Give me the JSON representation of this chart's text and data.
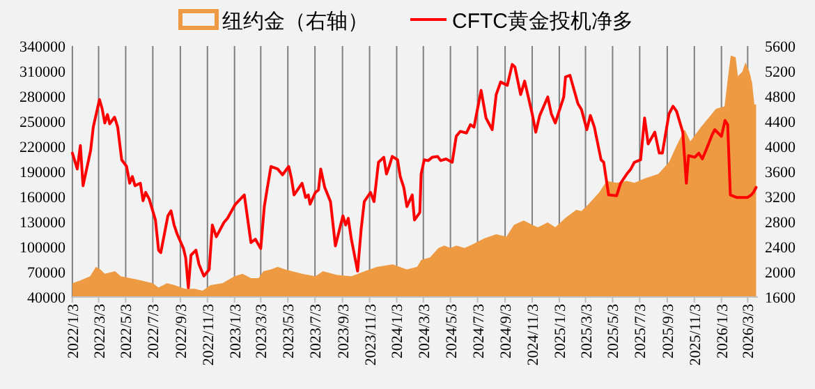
{
  "chart_data": {
    "type": "line",
    "grid": "x",
    "legend": "top",
    "xlim": [
      "2021-12-31",
      "2026-03-26"
    ],
    "xticks": [
      {
        "value": "2022-01-03",
        "label": "2022/1/3"
      },
      {
        "value": "2022-03-03",
        "label": "2022/3/3"
      },
      {
        "value": "2022-05-03",
        "label": "2022/5/3"
      },
      {
        "value": "2022-07-03",
        "label": "2022/7/3"
      },
      {
        "value": "2022-09-03",
        "label": "2022/9/3"
      },
      {
        "value": "2022-11-03",
        "label": "2022/11/3"
      },
      {
        "value": "2023-01-03",
        "label": "2023/1/3"
      },
      {
        "value": "2023-03-03",
        "label": "2023/3/3"
      },
      {
        "value": "2023-05-03",
        "label": "2023/5/3"
      },
      {
        "value": "2023-07-03",
        "label": "2023/7/3"
      },
      {
        "value": "2023-09-03",
        "label": "2023/9/3"
      },
      {
        "value": "2023-11-03",
        "label": "2023/11/3"
      },
      {
        "value": "2024-01-03",
        "label": "2024/1/3"
      },
      {
        "value": "2024-03-03",
        "label": "2024/3/3"
      },
      {
        "value": "2024-05-03",
        "label": "2024/5/3"
      },
      {
        "value": "2024-07-03",
        "label": "2024/7/3"
      },
      {
        "value": "2024-09-03",
        "label": "2024/9/3"
      },
      {
        "value": "2024-11-03",
        "label": "2024/11/3"
      },
      {
        "value": "2025-01-03",
        "label": "2025/1/3"
      },
      {
        "value": "2025-03-03",
        "label": "2025/3/3"
      },
      {
        "value": "2025-05-03",
        "label": "2025/5/3"
      },
      {
        "value": "2025-07-03",
        "label": "2025/7/3"
      },
      {
        "value": "2025-09-03",
        "label": "2025/9/3"
      },
      {
        "value": "2025-11-03",
        "label": "2025/11/3"
      },
      {
        "value": "2026-01-03",
        "label": "2026/1/3"
      },
      {
        "value": "2026-03-03",
        "label": "2026/3/3"
      }
    ],
    "ylim": [
      40000,
      340000
    ],
    "yticks": [
      40000,
      70000,
      100000,
      130000,
      160000,
      190000,
      220000,
      250000,
      280000,
      310000,
      340000
    ],
    "y2lim": [
      1600,
      5600
    ],
    "y2ticks": [
      1600,
      2000,
      2400,
      2800,
      3200,
      3600,
      4000,
      4400,
      4800,
      5200,
      5600
    ],
    "series": [
      {
        "name": "纽约金（右轴）",
        "type": "area",
        "axis": "y2",
        "color": "#ed9a43",
        "x": [
          "2022-01-03",
          "2022-01-20",
          "2022-02-12",
          "2022-02-25",
          "2022-03-07",
          "2022-03-17",
          "2022-04-09",
          "2022-04-22",
          "2022-05-27",
          "2022-07-03",
          "2022-07-16",
          "2022-08-04",
          "2022-08-21",
          "2022-09-13",
          "2022-10-05",
          "2022-10-23",
          "2022-11-10",
          "2022-12-07",
          "2023-01-03",
          "2023-01-21",
          "2023-02-09",
          "2023-02-26",
          "2023-03-09",
          "2023-03-26",
          "2023-04-10",
          "2023-04-27",
          "2023-06-04",
          "2023-07-04",
          "2023-07-21",
          "2023-08-22",
          "2023-09-23",
          "2023-10-23",
          "2023-11-20",
          "2023-12-25",
          "2024-01-26",
          "2024-02-18",
          "2024-02-27",
          "2024-03-18",
          "2024-04-06",
          "2024-04-19",
          "2024-05-03",
          "2024-05-16",
          "2024-06-04",
          "2024-06-25",
          "2024-07-17",
          "2024-08-14",
          "2024-09-06",
          "2024-09-23",
          "2024-10-15",
          "2024-11-03",
          "2024-11-16",
          "2024-12-08",
          "2024-12-25",
          "2025-01-17",
          "2025-02-10",
          "2025-02-22",
          "2025-03-10",
          "2025-04-03",
          "2025-04-20",
          "2025-05-12",
          "2025-06-04",
          "2025-06-21",
          "2025-07-14",
          "2025-08-14",
          "2025-09-07",
          "2025-09-24",
          "2025-10-12",
          "2025-10-25",
          "2025-11-17",
          "2025-12-09",
          "2025-12-22",
          "2026-01-10",
          "2026-01-18",
          "2026-01-24",
          "2026-02-04",
          "2026-02-09",
          "2026-02-19",
          "2026-02-26",
          "2026-03-07",
          "2026-03-13",
          "2026-03-18",
          "2026-03-22"
        ],
        "values": [
          1820,
          1860,
          1930,
          2080,
          2040,
          1970,
          2010,
          1930,
          1880,
          1820,
          1750,
          1820,
          1790,
          1730,
          1730,
          1700,
          1790,
          1820,
          1930,
          1970,
          1900,
          1900,
          2010,
          2040,
          2080,
          2040,
          1970,
          1930,
          2010,
          1950,
          1930,
          2010,
          2080,
          2120,
          2040,
          2080,
          2190,
          2230,
          2380,
          2420,
          2380,
          2420,
          2380,
          2450,
          2530,
          2600,
          2560,
          2750,
          2820,
          2750,
          2710,
          2790,
          2710,
          2860,
          2990,
          2970,
          3080,
          3270,
          3450,
          3420,
          3450,
          3420,
          3490,
          3560,
          3750,
          4010,
          4270,
          4080,
          4300,
          4490,
          4600,
          4640,
          5120,
          5450,
          5420,
          5120,
          5190,
          5340,
          5190,
          5010,
          4670,
          4670
        ]
      },
      {
        "name": "CFTC黄金投机净多",
        "color": "#ff0000",
        "x": [
          "2022-01-03",
          "2022-01-14",
          "2022-01-21",
          "2022-01-27",
          "2022-02-13",
          "2022-02-19",
          "2022-03-05",
          "2022-03-11",
          "2022-03-17",
          "2022-03-23",
          "2022-03-28",
          "2022-04-08",
          "2022-04-15",
          "2022-04-24",
          "2022-05-05",
          "2022-05-12",
          "2022-05-18",
          "2022-05-24",
          "2022-06-05",
          "2022-06-11",
          "2022-06-17",
          "2022-06-25",
          "2022-07-09",
          "2022-07-16",
          "2022-07-21",
          "2022-08-06",
          "2022-08-13",
          "2022-08-20",
          "2022-08-27",
          "2022-09-10",
          "2022-09-15",
          "2022-09-21",
          "2022-09-27",
          "2022-10-08",
          "2022-10-15",
          "2022-10-26",
          "2022-11-07",
          "2022-11-14",
          "2022-11-23",
          "2022-12-10",
          "2022-12-18",
          "2023-01-05",
          "2023-01-16",
          "2023-01-25",
          "2023-02-09",
          "2023-02-19",
          "2023-03-03",
          "2023-03-11",
          "2023-03-18",
          "2023-03-26",
          "2023-04-10",
          "2023-04-21",
          "2023-05-05",
          "2023-05-11",
          "2023-05-17",
          "2023-06-04",
          "2023-06-12",
          "2023-06-18",
          "2023-06-22",
          "2023-07-04",
          "2023-07-11",
          "2023-07-16",
          "2023-07-25",
          "2023-08-07",
          "2023-08-18",
          "2023-09-04",
          "2023-09-10",
          "2023-09-16",
          "2023-09-23",
          "2023-10-07",
          "2023-10-15",
          "2023-10-22",
          "2023-11-05",
          "2023-11-13",
          "2023-11-23",
          "2023-12-05",
          "2023-12-11",
          "2023-12-17",
          "2023-12-24",
          "2024-01-05",
          "2024-01-11",
          "2024-01-19",
          "2024-01-26",
          "2024-02-07",
          "2024-02-12",
          "2024-02-24",
          "2024-02-27",
          "2024-03-05",
          "2024-03-14",
          "2024-03-23",
          "2024-04-04",
          "2024-04-11",
          "2024-04-23",
          "2024-05-07",
          "2024-05-16",
          "2024-05-25",
          "2024-06-08",
          "2024-06-17",
          "2024-06-25",
          "2024-07-11",
          "2024-07-22",
          "2024-08-05",
          "2024-08-14",
          "2024-08-24",
          "2024-09-08",
          "2024-09-19",
          "2024-09-25",
          "2024-10-08",
          "2024-10-17",
          "2024-11-03",
          "2024-11-11",
          "2024-11-20",
          "2024-12-08",
          "2024-12-16",
          "2024-12-25",
          "2025-01-13",
          "2025-01-17",
          "2025-01-27",
          "2025-02-14",
          "2025-02-22",
          "2025-03-06",
          "2025-03-14",
          "2025-03-23",
          "2025-04-07",
          "2025-04-13",
          "2025-04-24",
          "2025-05-12",
          "2025-05-21",
          "2025-06-04",
          "2025-06-13",
          "2025-06-21",
          "2025-07-05",
          "2025-07-14",
          "2025-07-22",
          "2025-08-06",
          "2025-08-16",
          "2025-08-23",
          "2025-09-07",
          "2025-09-16",
          "2025-09-24",
          "2025-10-08",
          "2025-10-16",
          "2025-10-21",
          "2025-11-04",
          "2025-11-13",
          "2025-11-21",
          "2025-12-05",
          "2025-12-13",
          "2025-12-19",
          "2026-01-03",
          "2026-01-11",
          "2026-01-17",
          "2026-01-23",
          "2026-02-06",
          "2026-03-03",
          "2026-03-11",
          "2026-03-16",
          "2026-03-22"
        ],
        "values": [
          212000,
          193000,
          221000,
          173000,
          215000,
          243000,
          276000,
          265000,
          248000,
          258000,
          247000,
          255000,
          243000,
          204000,
          196000,
          176000,
          184000,
          173000,
          176000,
          155000,
          165000,
          157000,
          132000,
          96000,
          93000,
          137000,
          143000,
          126000,
          115000,
          98000,
          87000,
          51000,
          90000,
          96000,
          79000,
          65000,
          73000,
          126000,
          112000,
          129000,
          134000,
          151000,
          157000,
          162000,
          105000,
          109000,
          98000,
          148000,
          171000,
          196000,
          193000,
          186000,
          196000,
          182000,
          162000,
          176000,
          159000,
          162000,
          151000,
          165000,
          168000,
          193000,
          171000,
          154000,
          101000,
          137000,
          126000,
          134000,
          109000,
          71000,
          121000,
          154000,
          165000,
          154000,
          201000,
          207000,
          187000,
          196000,
          208000,
          204000,
          184000,
          171000,
          148000,
          162000,
          132000,
          141000,
          187000,
          204000,
          203000,
          207000,
          208000,
          203000,
          205000,
          201000,
          232000,
          238000,
          236000,
          246000,
          243000,
          287000,
          254000,
          240000,
          282000,
          297000,
          293000,
          318000,
          315000,
          282000,
          298000,
          259000,
          237000,
          257000,
          279000,
          259000,
          248000,
          279000,
          303000,
          305000,
          271000,
          264000,
          240000,
          257000,
          243000,
          204000,
          201000,
          162000,
          161000,
          176000,
          187000,
          193000,
          201000,
          204000,
          254000,
          223000,
          237000,
          212000,
          212000,
          259000,
          268000,
          262000,
          237000,
          176000,
          209000,
          207000,
          212000,
          205000,
          223000,
          234000,
          240000,
          232000,
          251000,
          246000,
          162000,
          159000,
          159000,
          162000,
          165000,
          171000
        ]
      }
    ]
  }
}
